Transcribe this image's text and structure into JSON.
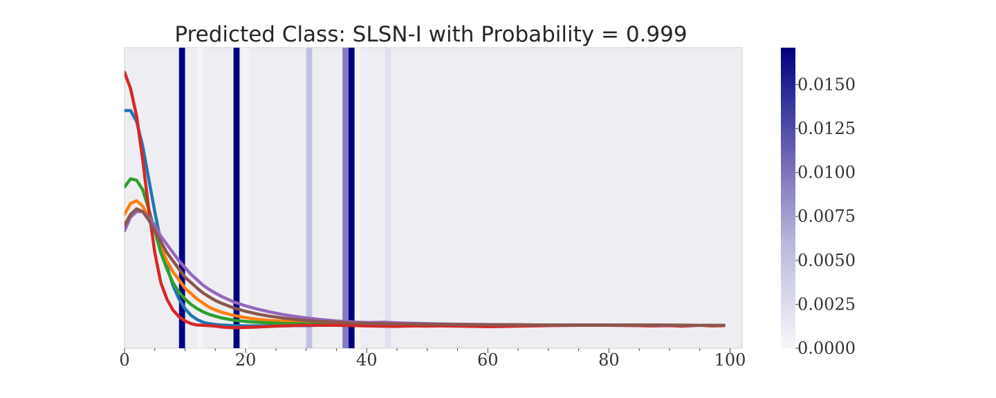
{
  "chart_data": {
    "type": "line",
    "title": "Predicted Class: SLSN-I with Probability = 0.999",
    "xlabel": "",
    "ylabel": "",
    "xlim": [
      0,
      102
    ],
    "ylim": [
      -0.05,
      1.05
    ],
    "x_ticks": [
      "0",
      "20",
      "40",
      "60",
      "80",
      "100"
    ],
    "x_tick_values": [
      0,
      20,
      40,
      60,
      80,
      100
    ],
    "x_minor_tick_values": [
      5,
      10,
      15,
      25,
      30,
      35,
      45,
      50,
      55,
      65,
      70,
      75,
      85,
      90,
      95
    ],
    "grid": false,
    "legend": "none",
    "attention_bands": {
      "colormap": "white-to-navy",
      "range": [
        0.0,
        0.0171
      ],
      "ticks": [
        "0.0000",
        "0.0025",
        "0.0050",
        "0.0075",
        "0.0100",
        "0.0125",
        "0.0150"
      ],
      "tick_values": [
        0.0,
        0.0025,
        0.005,
        0.0075,
        0.01,
        0.0125,
        0.015
      ],
      "bands": [
        {
          "x": 9.5,
          "value": 0.0171
        },
        {
          "x": 12.5,
          "value": 0.0004
        },
        {
          "x": 18.5,
          "value": 0.0171
        },
        {
          "x": 20.0,
          "value": 0.0004
        },
        {
          "x": 30.5,
          "value": 0.0052
        },
        {
          "x": 36.5,
          "value": 0.0095
        },
        {
          "x": 37.5,
          "value": 0.0171
        },
        {
          "x": 38.5,
          "value": 0.0005
        },
        {
          "x": 43.5,
          "value": 0.0022
        }
      ]
    },
    "series": [
      {
        "color": "#1f77b4",
        "x": [
          0,
          1,
          2,
          3,
          4,
          5,
          6,
          7,
          8,
          9,
          10,
          11,
          12,
          13,
          14,
          15,
          16,
          17,
          18,
          20,
          22,
          24,
          26,
          28,
          30,
          32,
          35,
          38,
          40,
          45,
          50,
          55,
          60,
          65,
          70,
          75,
          80,
          85,
          90,
          95,
          99
        ],
        "values": [
          0.82,
          0.82,
          0.78,
          0.69,
          0.57,
          0.45,
          0.34,
          0.25,
          0.18,
          0.13,
          0.095,
          0.07,
          0.055,
          0.045,
          0.04,
          0.037,
          0.035,
          0.034,
          0.033,
          0.032,
          0.032,
          0.032,
          0.032,
          0.033,
          0.033,
          0.034,
          0.034,
          0.035,
          0.035,
          0.035,
          0.035,
          0.035,
          0.034,
          0.034,
          0.034,
          0.034,
          0.034,
          0.034,
          0.034,
          0.034,
          0.034
        ]
      },
      {
        "color": "#ff7f0e",
        "x": [
          0,
          1,
          2,
          3,
          4,
          5,
          6,
          7,
          8,
          9,
          10,
          11,
          12,
          13,
          14,
          15,
          16,
          18,
          20,
          22,
          24,
          26,
          28,
          30,
          32,
          35,
          38,
          40,
          45,
          50,
          55,
          60,
          65,
          70,
          75,
          80,
          85,
          90,
          95,
          99
        ],
        "values": [
          0.44,
          0.48,
          0.49,
          0.47,
          0.43,
          0.38,
          0.32,
          0.27,
          0.23,
          0.2,
          0.17,
          0.15,
          0.13,
          0.115,
          0.1,
          0.09,
          0.082,
          0.07,
          0.062,
          0.056,
          0.052,
          0.049,
          0.046,
          0.044,
          0.042,
          0.04,
          0.039,
          0.038,
          0.036,
          0.035,
          0.035,
          0.034,
          0.034,
          0.034,
          0.034,
          0.034,
          0.034,
          0.034,
          0.034,
          0.034
        ]
      },
      {
        "color": "#2ca02c",
        "x": [
          0,
          1,
          2,
          3,
          4,
          5,
          6,
          7,
          8,
          9,
          10,
          11,
          12,
          13,
          14,
          15,
          16,
          18,
          20,
          22,
          24,
          26,
          28,
          30,
          32,
          35,
          38,
          40,
          45,
          50,
          55,
          60,
          65,
          70,
          75,
          80,
          85,
          90,
          95,
          99
        ],
        "values": [
          0.54,
          0.57,
          0.565,
          0.53,
          0.46,
          0.38,
          0.3,
          0.24,
          0.19,
          0.155,
          0.13,
          0.11,
          0.095,
          0.083,
          0.074,
          0.067,
          0.061,
          0.053,
          0.048,
          0.045,
          0.043,
          0.041,
          0.04,
          0.039,
          0.038,
          0.038,
          0.037,
          0.037,
          0.036,
          0.035,
          0.035,
          0.035,
          0.035,
          0.035,
          0.035,
          0.035,
          0.035,
          0.034,
          0.034,
          0.034
        ]
      },
      {
        "color": "#d62728",
        "x": [
          0,
          1,
          2,
          3,
          4,
          5,
          6,
          7,
          8,
          9,
          10,
          11,
          12,
          13,
          14,
          15,
          16,
          17,
          18,
          20,
          22,
          24,
          26,
          28,
          30,
          32,
          35,
          38,
          40,
          42,
          45,
          48,
          50,
          52,
          55,
          58,
          60,
          63,
          65,
          70,
          75,
          80,
          85,
          87,
          90,
          92,
          95,
          97,
          99
        ],
        "values": [
          0.96,
          0.9,
          0.8,
          0.64,
          0.46,
          0.3,
          0.19,
          0.13,
          0.09,
          0.065,
          0.05,
          0.04,
          0.035,
          0.034,
          0.033,
          0.031,
          0.028,
          0.026,
          0.025,
          0.026,
          0.028,
          0.03,
          0.032,
          0.033,
          0.034,
          0.034,
          0.034,
          0.033,
          0.032,
          0.031,
          0.03,
          0.032,
          0.031,
          0.032,
          0.031,
          0.03,
          0.029,
          0.03,
          0.031,
          0.033,
          0.034,
          0.034,
          0.033,
          0.032,
          0.033,
          0.031,
          0.034,
          0.032,
          0.033
        ]
      },
      {
        "color": "#9467bd",
        "x": [
          0,
          1,
          2,
          3,
          4,
          5,
          6,
          7,
          8,
          9,
          10,
          11,
          12,
          13,
          14,
          15,
          16,
          18,
          20,
          22,
          24,
          26,
          28,
          30,
          32,
          35,
          38,
          40,
          43,
          45,
          50,
          55,
          60,
          65,
          70,
          75,
          80,
          85,
          90,
          95,
          99
        ],
        "values": [
          0.38,
          0.43,
          0.45,
          0.45,
          0.43,
          0.4,
          0.36,
          0.33,
          0.3,
          0.27,
          0.245,
          0.22,
          0.2,
          0.18,
          0.165,
          0.152,
          0.14,
          0.12,
          0.105,
          0.093,
          0.083,
          0.074,
          0.067,
          0.061,
          0.056,
          0.05,
          0.046,
          0.044,
          0.045,
          0.043,
          0.04,
          0.038,
          0.037,
          0.036,
          0.035,
          0.035,
          0.035,
          0.035,
          0.034,
          0.034,
          0.034
        ]
      },
      {
        "color": "#8c564b",
        "x": [
          0,
          1,
          2,
          3,
          4,
          5,
          6,
          7,
          8,
          9,
          10,
          11,
          12,
          13,
          14,
          15,
          16,
          18,
          20,
          22,
          24,
          26,
          28,
          30,
          32,
          35,
          38,
          40,
          45,
          50,
          55,
          60,
          65,
          70,
          75,
          80,
          85,
          90,
          95,
          99
        ],
        "values": [
          0.4,
          0.44,
          0.46,
          0.45,
          0.42,
          0.38,
          0.34,
          0.3,
          0.27,
          0.24,
          0.21,
          0.19,
          0.17,
          0.152,
          0.138,
          0.125,
          0.115,
          0.098,
          0.085,
          0.075,
          0.067,
          0.061,
          0.056,
          0.052,
          0.049,
          0.045,
          0.042,
          0.041,
          0.039,
          0.038,
          0.037,
          0.036,
          0.036,
          0.035,
          0.035,
          0.035,
          0.035,
          0.035,
          0.034,
          0.034
        ]
      }
    ]
  }
}
